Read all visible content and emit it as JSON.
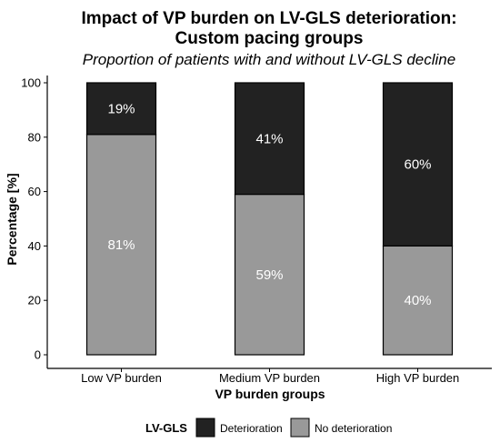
{
  "chart_data": {
    "type": "bar",
    "stacked": true,
    "title_lines": [
      "Impact of VP burden on LV-GLS deterioration:",
      "Custom pacing groups"
    ],
    "subtitle": "Proportion of patients with and without LV-GLS decline",
    "xlabel": "VP burden groups",
    "ylabel": "Percentage [%]",
    "ylim": [
      0,
      100
    ],
    "yticks": [
      0,
      20,
      40,
      60,
      80,
      100
    ],
    "grid": false,
    "categories": [
      "Low VP burden",
      "Medium VP burden",
      "High VP burden"
    ],
    "series": [
      {
        "name": "No deterioration",
        "color": "#999999",
        "values": [
          81,
          59,
          40
        ],
        "labels": [
          "81%",
          "59%",
          "40%"
        ]
      },
      {
        "name": "Deterioration",
        "color": "#222222",
        "values": [
          19,
          41,
          60
        ],
        "labels": [
          "19%",
          "41%",
          "60%"
        ]
      }
    ],
    "legend": {
      "title": "LV-GLS",
      "position": "bottom",
      "entries": [
        {
          "label": "Deterioration",
          "color": "#222222"
        },
        {
          "label": "No deterioration",
          "color": "#999999"
        }
      ]
    }
  }
}
